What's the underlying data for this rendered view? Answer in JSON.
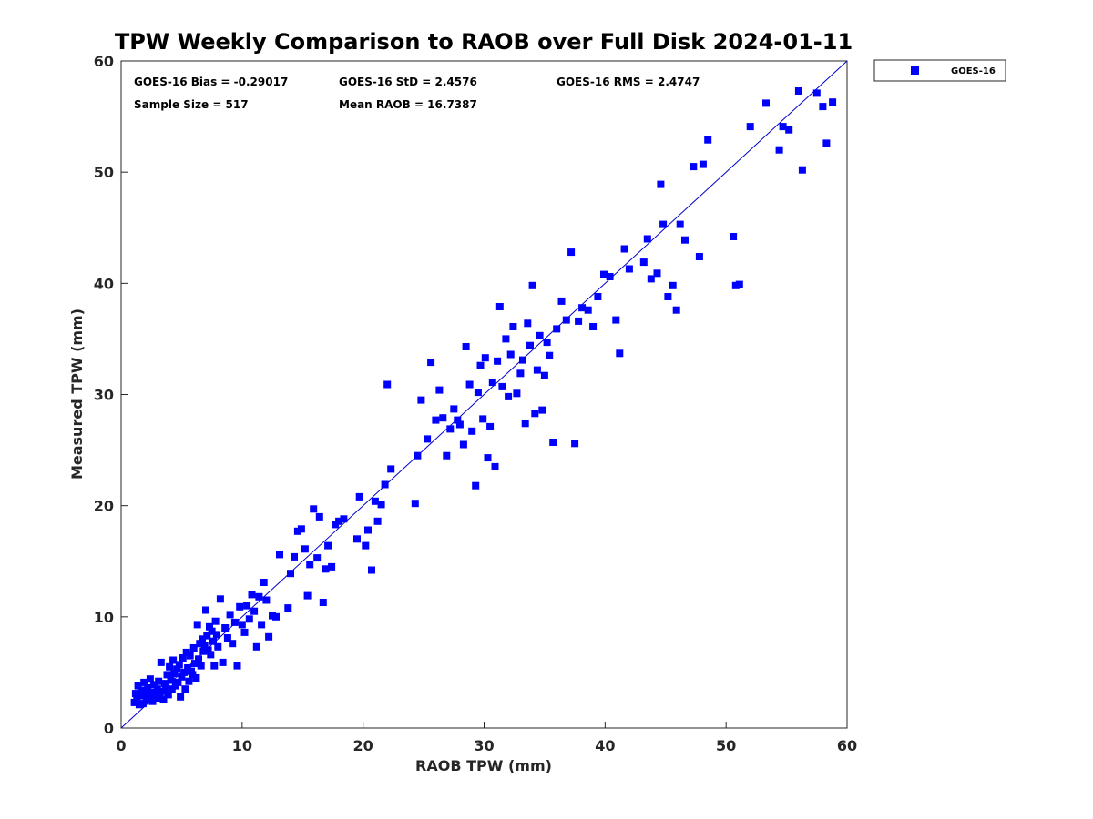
{
  "colors": {
    "series": "#0000ff",
    "axis": "#262626",
    "one_to_one": "#0000cc"
  },
  "chart_data": {
    "type": "scatter",
    "title": "TPW Weekly Comparison to RAOB over Full Disk 2024-01-11",
    "xlabel": "RAOB TPW (mm)",
    "ylabel": "Measured TPW (mm)",
    "xlim": [
      0,
      60
    ],
    "ylim": [
      0,
      60
    ],
    "xticks": [
      0,
      10,
      20,
      30,
      40,
      50,
      60
    ],
    "yticks": [
      0,
      10,
      20,
      30,
      40,
      50,
      60
    ],
    "reference_line": {
      "type": "one-to-one",
      "from": [
        0,
        0
      ],
      "to": [
        60,
        60
      ]
    },
    "legend": {
      "placement": "top-right-outside",
      "entries": [
        "GOES-16"
      ]
    },
    "stats": {
      "bias": "GOES-16 Bias = -0.29017",
      "std": "GOES-16 StD = 2.4576",
      "rms": "GOES-16 RMS = 2.4747",
      "sample_size": "Sample Size = 517",
      "mean_raob": "Mean RAOB = 16.7387"
    },
    "series": [
      {
        "name": "GOES-16",
        "marker": "square",
        "points": [
          [
            1.1,
            2.3
          ],
          [
            1.2,
            3.1
          ],
          [
            1.3,
            2.6
          ],
          [
            1.4,
            3.8
          ],
          [
            1.5,
            2.1
          ],
          [
            1.6,
            2.9
          ],
          [
            1.7,
            3.4
          ],
          [
            1.8,
            2.2
          ],
          [
            1.9,
            4.1
          ],
          [
            2.0,
            3.0
          ],
          [
            2.1,
            2.5
          ],
          [
            2.2,
            3.6
          ],
          [
            2.3,
            2.8
          ],
          [
            2.4,
            4.4
          ],
          [
            2.5,
            3.2
          ],
          [
            2.6,
            2.4
          ],
          [
            2.7,
            3.9
          ],
          [
            2.8,
            3.1
          ],
          [
            2.9,
            2.7
          ],
          [
            3.0,
            3.5
          ],
          [
            3.1,
            4.2
          ],
          [
            3.2,
            2.9
          ],
          [
            3.3,
            5.9
          ],
          [
            3.4,
            3.3
          ],
          [
            3.5,
            2.6
          ],
          [
            3.6,
            4.0
          ],
          [
            3.7,
            3.6
          ],
          [
            3.8,
            4.8
          ],
          [
            3.9,
            3.0
          ],
          [
            4.0,
            5.5
          ],
          [
            4.1,
            4.3
          ],
          [
            4.2,
            3.5
          ],
          [
            4.3,
            6.1
          ],
          [
            4.4,
            4.9
          ],
          [
            4.5,
            3.8
          ],
          [
            4.6,
            5.3
          ],
          [
            4.7,
            4.1
          ],
          [
            4.8,
            5.7
          ],
          [
            4.9,
            2.8
          ],
          [
            5.0,
            4.6
          ],
          [
            5.1,
            6.3
          ],
          [
            5.2,
            5.0
          ],
          [
            5.3,
            3.5
          ],
          [
            5.4,
            6.8
          ],
          [
            5.5,
            5.4
          ],
          [
            5.6,
            4.2
          ],
          [
            5.7,
            6.5
          ],
          [
            5.8,
            5.1
          ],
          [
            5.9,
            4.8
          ],
          [
            6.0,
            7.2
          ],
          [
            6.1,
            5.8
          ],
          [
            6.2,
            4.5
          ],
          [
            6.3,
            9.3
          ],
          [
            6.4,
            6.2
          ],
          [
            6.5,
            7.6
          ],
          [
            6.6,
            5.6
          ],
          [
            6.7,
            8.0
          ],
          [
            6.8,
            6.9
          ],
          [
            6.9,
            7.4
          ],
          [
            7.0,
            10.6
          ],
          [
            7.1,
            8.3
          ],
          [
            7.2,
            7.0
          ],
          [
            7.3,
            9.1
          ],
          [
            7.4,
            6.6
          ],
          [
            7.5,
            8.7
          ],
          [
            7.6,
            7.8
          ],
          [
            7.7,
            5.6
          ],
          [
            7.8,
            9.6
          ],
          [
            7.9,
            8.4
          ],
          [
            8.0,
            7.3
          ],
          [
            8.2,
            11.6
          ],
          [
            8.4,
            5.9
          ],
          [
            8.6,
            9.0
          ],
          [
            8.8,
            8.1
          ],
          [
            9.0,
            10.2
          ],
          [
            9.2,
            7.6
          ],
          [
            9.4,
            9.5
          ],
          [
            9.6,
            5.6
          ],
          [
            9.8,
            10.9
          ],
          [
            10.0,
            9.3
          ],
          [
            10.2,
            8.6
          ],
          [
            10.4,
            11.0
          ],
          [
            10.6,
            9.8
          ],
          [
            10.8,
            12.0
          ],
          [
            11.0,
            10.5
          ],
          [
            11.2,
            7.3
          ],
          [
            11.4,
            11.8
          ],
          [
            11.6,
            9.3
          ],
          [
            11.8,
            13.1
          ],
          [
            12.0,
            11.5
          ],
          [
            12.2,
            8.2
          ],
          [
            12.5,
            10.1
          ],
          [
            12.8,
            10.0
          ],
          [
            13.1,
            15.6
          ],
          [
            13.8,
            10.8
          ],
          [
            14.0,
            13.9
          ],
          [
            14.3,
            15.4
          ],
          [
            14.6,
            17.7
          ],
          [
            14.9,
            17.9
          ],
          [
            15.2,
            16.1
          ],
          [
            15.4,
            11.9
          ],
          [
            15.6,
            14.7
          ],
          [
            15.9,
            19.7
          ],
          [
            16.2,
            15.3
          ],
          [
            16.4,
            19.0
          ],
          [
            16.7,
            11.3
          ],
          [
            16.9,
            14.3
          ],
          [
            17.1,
            16.4
          ],
          [
            17.4,
            14.5
          ],
          [
            17.7,
            18.3
          ],
          [
            18.0,
            18.6
          ],
          [
            18.4,
            18.8
          ],
          [
            19.5,
            17.0
          ],
          [
            19.7,
            20.8
          ],
          [
            20.2,
            16.4
          ],
          [
            20.4,
            17.8
          ],
          [
            20.7,
            14.2
          ],
          [
            21.0,
            20.4
          ],
          [
            21.2,
            18.6
          ],
          [
            21.5,
            20.1
          ],
          [
            21.8,
            21.9
          ],
          [
            22.0,
            30.9
          ],
          [
            22.3,
            23.3
          ],
          [
            24.3,
            20.2
          ],
          [
            24.5,
            24.5
          ],
          [
            24.8,
            29.5
          ],
          [
            25.3,
            26.0
          ],
          [
            25.6,
            32.9
          ],
          [
            26.0,
            27.7
          ],
          [
            26.3,
            30.4
          ],
          [
            26.6,
            27.9
          ],
          [
            26.9,
            24.5
          ],
          [
            27.2,
            26.9
          ],
          [
            27.5,
            28.7
          ],
          [
            27.8,
            27.7
          ],
          [
            28.0,
            27.3
          ],
          [
            28.3,
            25.5
          ],
          [
            28.5,
            34.3
          ],
          [
            28.8,
            30.9
          ],
          [
            29.0,
            26.7
          ],
          [
            29.3,
            21.8
          ],
          [
            29.5,
            30.2
          ],
          [
            29.7,
            32.6
          ],
          [
            29.9,
            27.8
          ],
          [
            30.1,
            33.3
          ],
          [
            30.3,
            24.3
          ],
          [
            30.5,
            27.1
          ],
          [
            30.7,
            31.1
          ],
          [
            30.9,
            23.5
          ],
          [
            31.1,
            33.0
          ],
          [
            31.3,
            37.9
          ],
          [
            31.5,
            30.7
          ],
          [
            31.8,
            35.0
          ],
          [
            32.0,
            29.8
          ],
          [
            32.2,
            33.6
          ],
          [
            32.4,
            36.1
          ],
          [
            32.7,
            30.1
          ],
          [
            33.0,
            31.9
          ],
          [
            33.2,
            33.1
          ],
          [
            33.4,
            27.4
          ],
          [
            33.6,
            36.4
          ],
          [
            33.8,
            34.4
          ],
          [
            34.0,
            39.8
          ],
          [
            34.2,
            28.3
          ],
          [
            34.4,
            32.2
          ],
          [
            34.6,
            35.3
          ],
          [
            34.8,
            28.6
          ],
          [
            35.0,
            31.7
          ],
          [
            35.2,
            34.7
          ],
          [
            35.4,
            33.5
          ],
          [
            35.7,
            25.7
          ],
          [
            36.0,
            35.9
          ],
          [
            36.4,
            38.4
          ],
          [
            36.8,
            36.7
          ],
          [
            37.2,
            42.8
          ],
          [
            37.5,
            25.6
          ],
          [
            37.8,
            36.6
          ],
          [
            38.1,
            37.8
          ],
          [
            38.6,
            37.6
          ],
          [
            39.0,
            36.1
          ],
          [
            39.4,
            38.8
          ],
          [
            39.9,
            40.8
          ],
          [
            40.4,
            40.6
          ],
          [
            40.9,
            36.7
          ],
          [
            41.2,
            33.7
          ],
          [
            41.6,
            43.1
          ],
          [
            42.0,
            41.3
          ],
          [
            43.2,
            41.9
          ],
          [
            43.5,
            44.0
          ],
          [
            43.8,
            40.4
          ],
          [
            44.3,
            40.9
          ],
          [
            44.6,
            48.9
          ],
          [
            44.8,
            45.3
          ],
          [
            45.2,
            38.8
          ],
          [
            45.6,
            39.8
          ],
          [
            45.9,
            37.6
          ],
          [
            46.2,
            45.3
          ],
          [
            46.6,
            43.9
          ],
          [
            47.3,
            50.5
          ],
          [
            47.8,
            42.4
          ],
          [
            48.1,
            50.7
          ],
          [
            48.5,
            52.9
          ],
          [
            50.6,
            44.2
          ],
          [
            50.8,
            39.8
          ],
          [
            51.1,
            39.9
          ],
          [
            52.0,
            54.1
          ],
          [
            53.3,
            56.2
          ],
          [
            54.4,
            52.0
          ],
          [
            54.7,
            54.1
          ],
          [
            55.2,
            53.8
          ],
          [
            56.0,
            57.3
          ],
          [
            56.3,
            50.2
          ],
          [
            57.5,
            57.1
          ],
          [
            58.0,
            55.9
          ],
          [
            58.3,
            52.6
          ],
          [
            58.8,
            56.3
          ]
        ]
      }
    ]
  }
}
